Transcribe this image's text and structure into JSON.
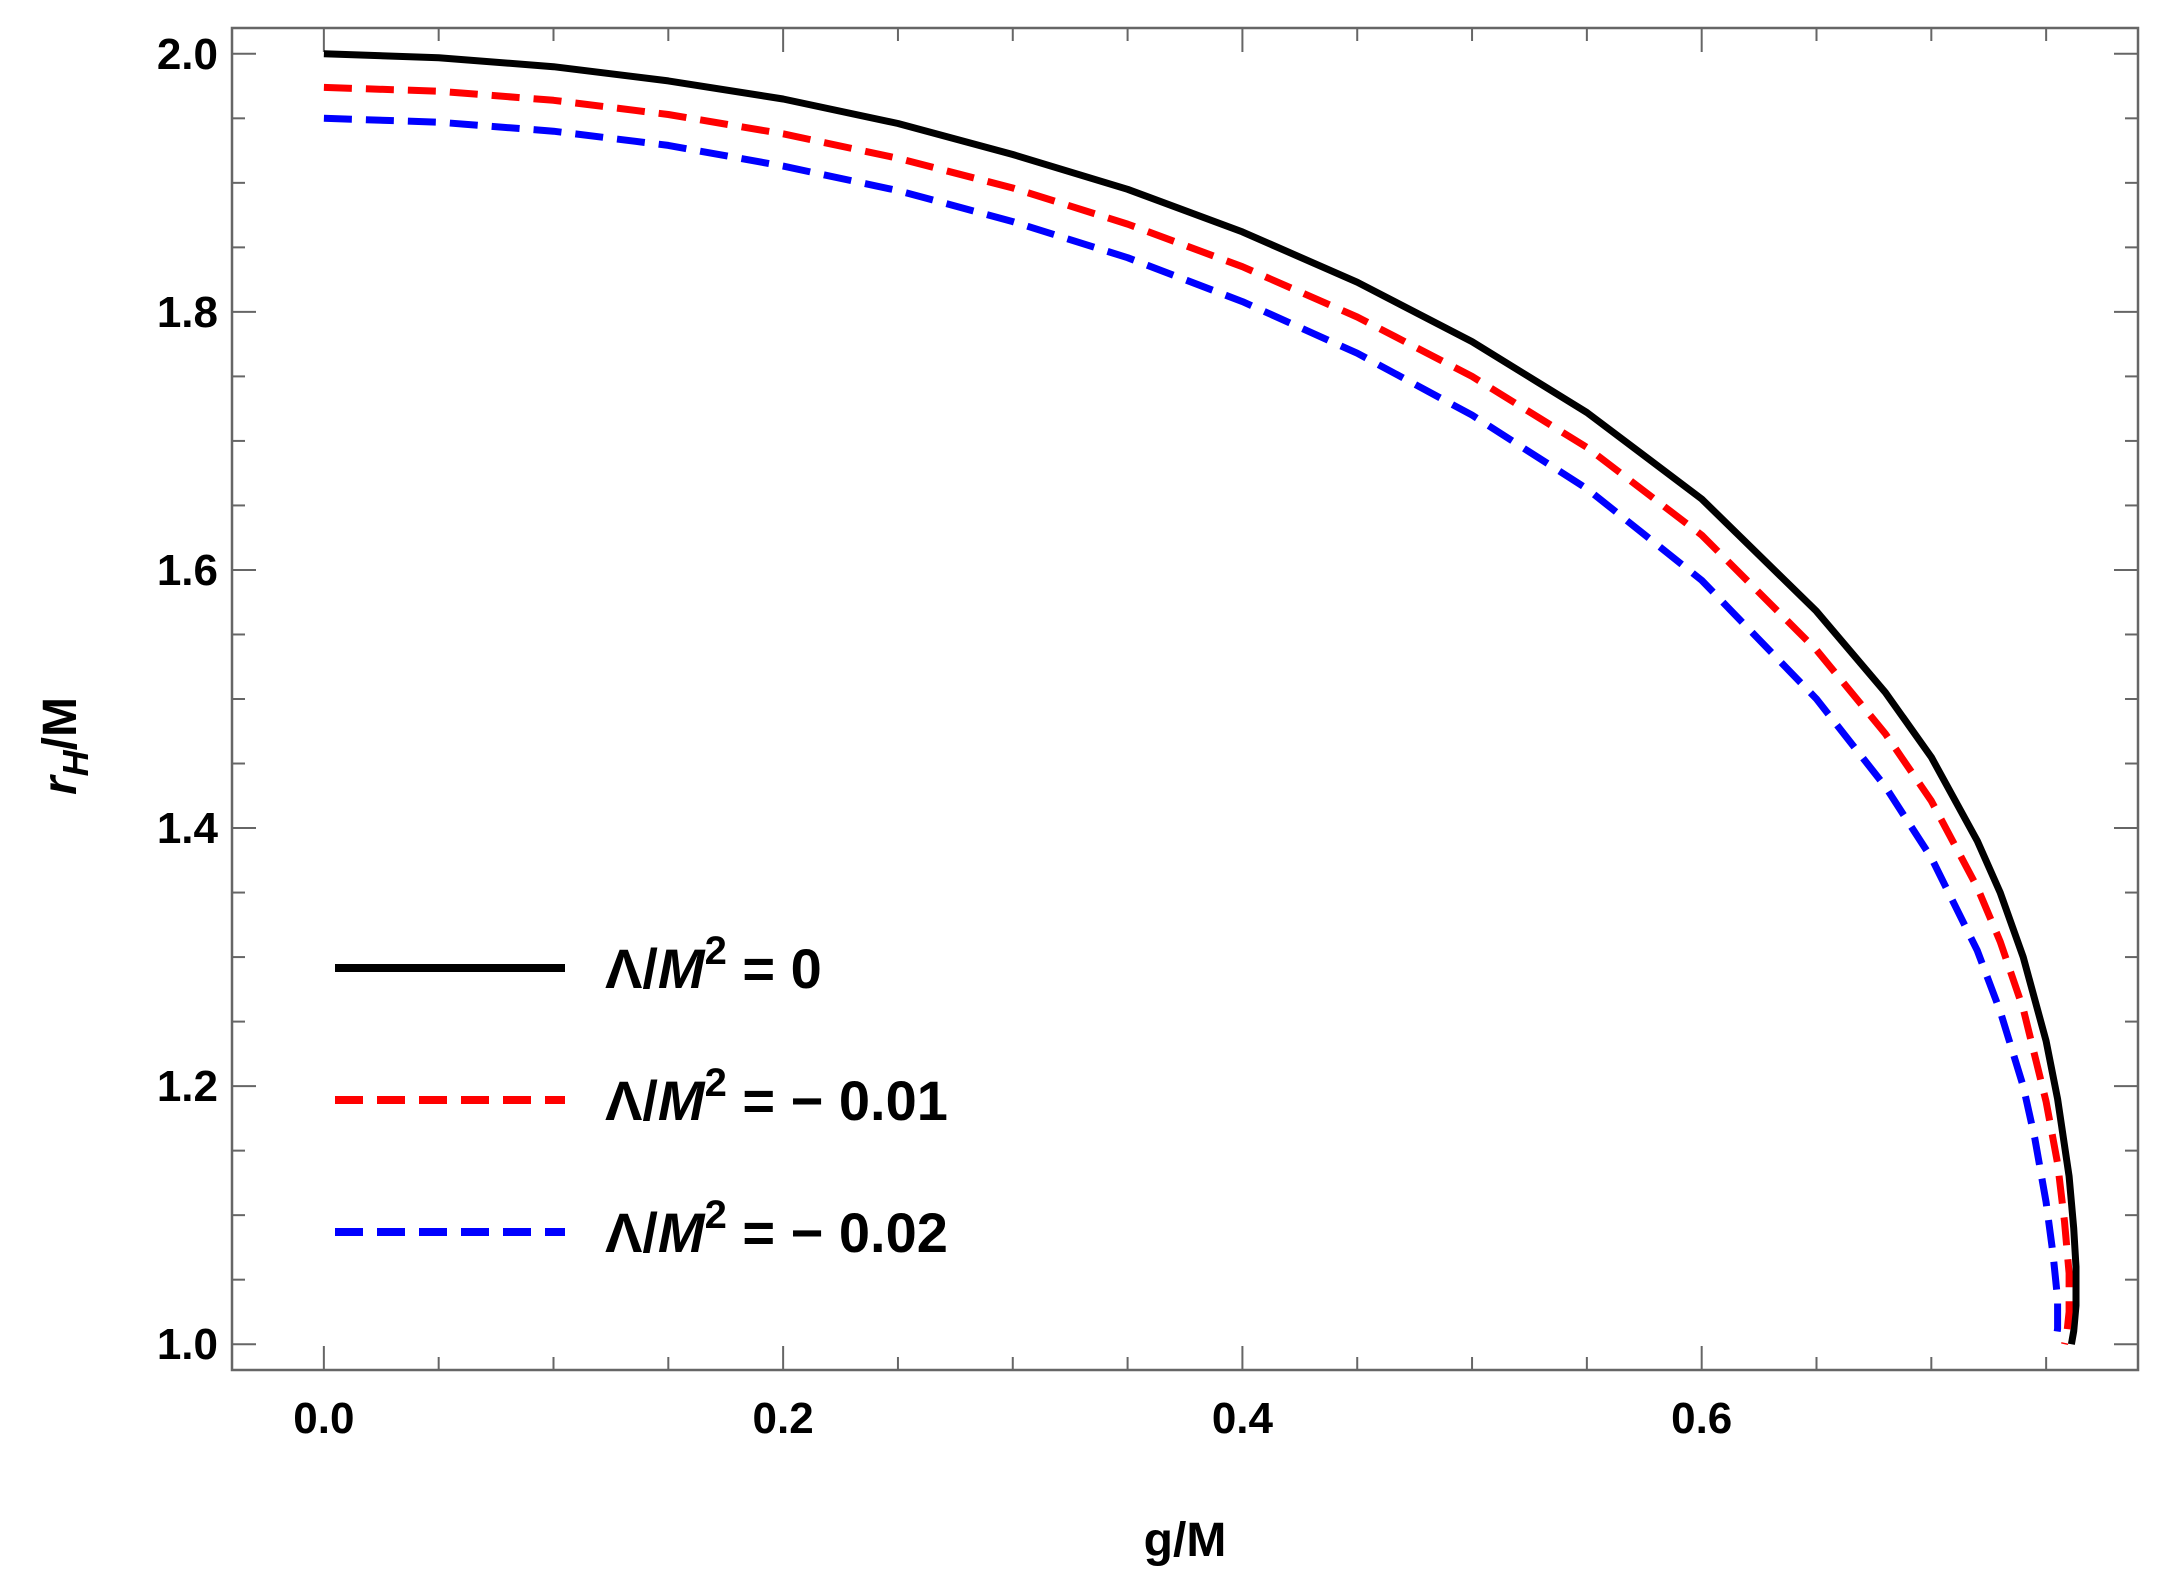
{
  "chart_data": {
    "type": "line",
    "title": "",
    "xlabel": "g/M",
    "ylabel_main": "r",
    "ylabel_sub": "H",
    "ylabel_suffix": "/M",
    "xlim": [
      -0.04,
      0.79
    ],
    "ylim": [
      0.98,
      2.02
    ],
    "x_major_ticks": [
      0.0,
      0.2,
      0.4,
      0.6
    ],
    "x_tick_labels": [
      "0.0",
      "0.2",
      "0.4",
      "0.6"
    ],
    "x_minor_step": 0.05,
    "y_major_ticks": [
      1.0,
      1.2,
      1.4,
      1.6,
      1.8,
      2.0
    ],
    "y_tick_labels": [
      "1.0",
      "1.2",
      "1.4",
      "1.6",
      "1.8",
      "2.0"
    ],
    "y_minor_step": 0.05,
    "grid": false,
    "legend_position": "bottom-left",
    "series": [
      {
        "name": "Λ/M² = 0",
        "legend_prefix": "Λ/",
        "legend_var": "M",
        "legend_sup": "2",
        "legend_suffix": " = 0",
        "color": "#000000",
        "style": "solid",
        "points": [
          [
            0.0,
            2.0
          ],
          [
            0.05,
            1.997
          ],
          [
            0.1,
            1.99
          ],
          [
            0.15,
            1.979
          ],
          [
            0.2,
            1.965
          ],
          [
            0.25,
            1.946
          ],
          [
            0.3,
            1.922
          ],
          [
            0.35,
            1.895
          ],
          [
            0.4,
            1.862
          ],
          [
            0.45,
            1.823
          ],
          [
            0.5,
            1.777
          ],
          [
            0.55,
            1.722
          ],
          [
            0.6,
            1.655
          ],
          [
            0.65,
            1.568
          ],
          [
            0.68,
            1.505
          ],
          [
            0.7,
            1.455
          ],
          [
            0.72,
            1.39
          ],
          [
            0.73,
            1.35
          ],
          [
            0.74,
            1.3
          ],
          [
            0.75,
            1.235
          ],
          [
            0.755,
            1.19
          ],
          [
            0.76,
            1.13
          ],
          [
            0.762,
            1.09
          ],
          [
            0.763,
            1.06
          ],
          [
            0.763,
            1.03
          ],
          [
            0.762,
            1.01
          ],
          [
            0.761,
            1.0
          ]
        ]
      },
      {
        "name": "Λ/M² = − 0.01",
        "legend_prefix": "Λ/",
        "legend_var": "M",
        "legend_sup": "2",
        "legend_suffix": " = − 0.01",
        "color": "#ff0000",
        "style": "dashed",
        "points": [
          [
            0.0,
            1.974
          ],
          [
            0.05,
            1.971
          ],
          [
            0.1,
            1.964
          ],
          [
            0.15,
            1.953
          ],
          [
            0.2,
            1.938
          ],
          [
            0.25,
            1.919
          ],
          [
            0.3,
            1.896
          ],
          [
            0.35,
            1.868
          ],
          [
            0.4,
            1.835
          ],
          [
            0.45,
            1.796
          ],
          [
            0.5,
            1.75
          ],
          [
            0.55,
            1.695
          ],
          [
            0.6,
            1.627
          ],
          [
            0.65,
            1.538
          ],
          [
            0.68,
            1.473
          ],
          [
            0.7,
            1.421
          ],
          [
            0.72,
            1.354
          ],
          [
            0.73,
            1.312
          ],
          [
            0.74,
            1.26
          ],
          [
            0.75,
            1.188
          ],
          [
            0.755,
            1.14
          ],
          [
            0.758,
            1.095
          ],
          [
            0.76,
            1.055
          ],
          [
            0.76,
            1.025
          ],
          [
            0.759,
            1.008
          ],
          [
            0.758,
            1.0
          ]
        ]
      },
      {
        "name": "Λ/M² = − 0.02",
        "legend_prefix": "Λ/",
        "legend_var": "M",
        "legend_sup": "2",
        "legend_suffix": " = − 0.02",
        "color": "#0000ff",
        "style": "dashed",
        "points": [
          [
            0.0,
            1.95
          ],
          [
            0.05,
            1.947
          ],
          [
            0.1,
            1.94
          ],
          [
            0.15,
            1.929
          ],
          [
            0.2,
            1.913
          ],
          [
            0.25,
            1.894
          ],
          [
            0.3,
            1.87
          ],
          [
            0.35,
            1.842
          ],
          [
            0.4,
            1.808
          ],
          [
            0.45,
            1.768
          ],
          [
            0.5,
            1.72
          ],
          [
            0.55,
            1.663
          ],
          [
            0.6,
            1.592
          ],
          [
            0.65,
            1.5
          ],
          [
            0.68,
            1.432
          ],
          [
            0.7,
            1.377
          ],
          [
            0.72,
            1.305
          ],
          [
            0.73,
            1.258
          ],
          [
            0.74,
            1.2
          ],
          [
            0.745,
            1.16
          ],
          [
            0.75,
            1.11
          ],
          [
            0.753,
            1.07
          ],
          [
            0.755,
            1.035
          ],
          [
            0.755,
            1.012
          ],
          [
            0.754,
            1.0
          ]
        ]
      }
    ]
  }
}
